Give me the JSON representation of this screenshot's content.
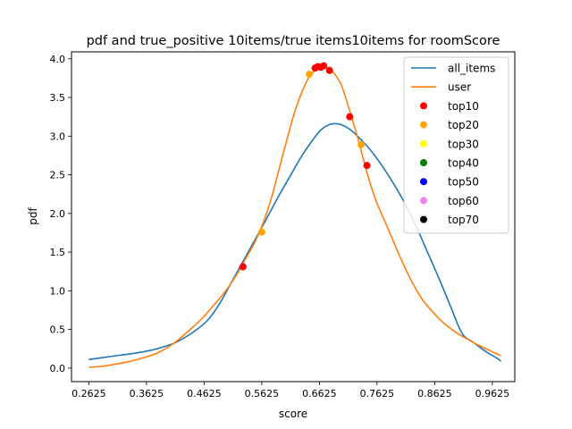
{
  "chart_data": {
    "type": "line",
    "title": "pdf and true_positive 10items/true items10items for roomScore",
    "xlabel": "score",
    "ylabel": "pdf",
    "xlim": [
      0.2325,
      1.0015
    ],
    "ylim": [
      -0.175,
      4.09
    ],
    "xticks": [
      0.2625,
      0.3625,
      0.4625,
      0.5625,
      0.6625,
      0.7625,
      0.8625,
      0.9625
    ],
    "xtick_labels": [
      "0.2625",
      "0.3625",
      "0.4625",
      "0.5625",
      "0.6625",
      "0.7625",
      "0.8625",
      "0.9625"
    ],
    "yticks": [
      0,
      0.5,
      1,
      1.5,
      2,
      2.5,
      3,
      3.5,
      4
    ],
    "ytick_labels": [
      "0.0",
      "0.5",
      "1.0",
      "1.5",
      "2.0",
      "2.5",
      "3.0",
      "3.5",
      "4.0"
    ],
    "grid": false,
    "legend_position": "top-right",
    "series": [
      {
        "name": "all_items",
        "kind": "line",
        "color": "#1f77b4",
        "points": [
          [
            0.2625,
            0.11
          ],
          [
            0.3,
            0.15
          ],
          [
            0.34,
            0.19
          ],
          [
            0.37,
            0.23
          ],
          [
            0.39,
            0.27
          ],
          [
            0.41,
            0.32
          ],
          [
            0.43,
            0.4
          ],
          [
            0.45,
            0.5
          ],
          [
            0.47,
            0.63
          ],
          [
            0.49,
            0.84
          ],
          [
            0.51,
            1.11
          ],
          [
            0.53,
            1.38
          ],
          [
            0.55,
            1.65
          ],
          [
            0.57,
            1.92
          ],
          [
            0.59,
            2.2
          ],
          [
            0.61,
            2.46
          ],
          [
            0.63,
            2.72
          ],
          [
            0.65,
            2.94
          ],
          [
            0.665,
            3.08
          ],
          [
            0.68,
            3.15
          ],
          [
            0.69,
            3.16
          ],
          [
            0.7,
            3.15
          ],
          [
            0.715,
            3.09
          ],
          [
            0.73,
            2.99
          ],
          [
            0.75,
            2.83
          ],
          [
            0.77,
            2.63
          ],
          [
            0.79,
            2.4
          ],
          [
            0.81,
            2.14
          ],
          [
            0.83,
            1.84
          ],
          [
            0.85,
            1.5
          ],
          [
            0.87,
            1.16
          ],
          [
            0.89,
            0.8
          ],
          [
            0.91,
            0.45
          ],
          [
            0.93,
            0.33
          ],
          [
            0.95,
            0.22
          ],
          [
            0.97,
            0.13
          ],
          [
            0.9775,
            0.09
          ]
        ]
      },
      {
        "name": "user",
        "kind": "line",
        "color": "#ff7f0e",
        "points": [
          [
            0.2625,
            0.01
          ],
          [
            0.28,
            0.02
          ],
          [
            0.3,
            0.04
          ],
          [
            0.33,
            0.08
          ],
          [
            0.36,
            0.14
          ],
          [
            0.38,
            0.19
          ],
          [
            0.4,
            0.27
          ],
          [
            0.42,
            0.38
          ],
          [
            0.44,
            0.51
          ],
          [
            0.46,
            0.65
          ],
          [
            0.48,
            0.82
          ],
          [
            0.5,
            1.0
          ],
          [
            0.52,
            1.22
          ],
          [
            0.535,
            1.42
          ],
          [
            0.55,
            1.62
          ],
          [
            0.565,
            1.88
          ],
          [
            0.58,
            2.22
          ],
          [
            0.6,
            2.78
          ],
          [
            0.62,
            3.32
          ],
          [
            0.64,
            3.7
          ],
          [
            0.655,
            3.85
          ],
          [
            0.665,
            3.89
          ],
          [
            0.675,
            3.89
          ],
          [
            0.685,
            3.84
          ],
          [
            0.7,
            3.67
          ],
          [
            0.715,
            3.33
          ],
          [
            0.73,
            2.95
          ],
          [
            0.745,
            2.53
          ],
          [
            0.76,
            2.18
          ],
          [
            0.78,
            1.83
          ],
          [
            0.8,
            1.48
          ],
          [
            0.82,
            1.16
          ],
          [
            0.84,
            0.9
          ],
          [
            0.86,
            0.72
          ],
          [
            0.88,
            0.57
          ],
          [
            0.9,
            0.46
          ],
          [
            0.92,
            0.37
          ],
          [
            0.94,
            0.29
          ],
          [
            0.96,
            0.22
          ],
          [
            0.9775,
            0.16
          ]
        ]
      },
      {
        "name": "top10",
        "kind": "scatter",
        "color": "#ff0000",
        "points": [
          [
            0.53,
            1.31
          ],
          [
            0.655,
            3.88
          ],
          [
            0.66,
            3.9
          ],
          [
            0.665,
            3.89
          ],
          [
            0.67,
            3.91
          ],
          [
            0.68,
            3.85
          ],
          [
            0.715,
            3.25
          ],
          [
            0.745,
            2.62
          ]
        ]
      },
      {
        "name": "top20",
        "kind": "scatter",
        "color": "#ffa500",
        "points": [
          [
            0.5625,
            1.76
          ],
          [
            0.645,
            3.8
          ],
          [
            0.735,
            2.89
          ]
        ]
      },
      {
        "name": "top30",
        "kind": "scatter",
        "color": "#ffff00",
        "points": []
      },
      {
        "name": "top40",
        "kind": "scatter",
        "color": "#008000",
        "points": []
      },
      {
        "name": "top50",
        "kind": "scatter",
        "color": "#0000ff",
        "points": []
      },
      {
        "name": "top60",
        "kind": "scatter",
        "color": "#ee82ee",
        "points": []
      },
      {
        "name": "top70",
        "kind": "scatter",
        "color": "#000000",
        "points": []
      }
    ]
  }
}
